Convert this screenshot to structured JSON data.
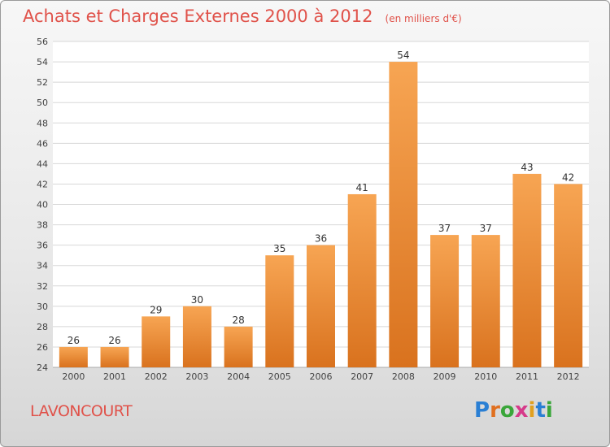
{
  "header": {
    "title": "Achats et Charges Externes 2000 à 2012",
    "unit": "(en milliers d'€)"
  },
  "footer": {
    "commune": "LAVONCOURT",
    "logo": [
      "P",
      "r",
      "o",
      "x",
      "i",
      "t",
      "i"
    ],
    "logo_colors": [
      "#2a7fd4",
      "#e07020",
      "#3aa63a",
      "#d63a8a",
      "#e0a020",
      "#2a7fd4",
      "#3aa63a"
    ]
  },
  "chart_data": {
    "type": "bar",
    "categories": [
      "2000",
      "2001",
      "2002",
      "2003",
      "2004",
      "2005",
      "2006",
      "2007",
      "2008",
      "2009",
      "2010",
      "2011",
      "2012"
    ],
    "values": [
      26,
      26,
      29,
      30,
      28,
      35,
      36,
      41,
      54,
      37,
      37,
      43,
      42
    ],
    "ylim": [
      24,
      56
    ],
    "yticks": [
      24,
      26,
      28,
      30,
      32,
      34,
      36,
      38,
      40,
      42,
      44,
      46,
      48,
      50,
      52,
      54,
      56
    ],
    "grid": true,
    "bar_color_top": "#f7a553",
    "bar_color_bottom": "#d9721e",
    "title": "Achats et Charges Externes 2000 à 2012"
  }
}
